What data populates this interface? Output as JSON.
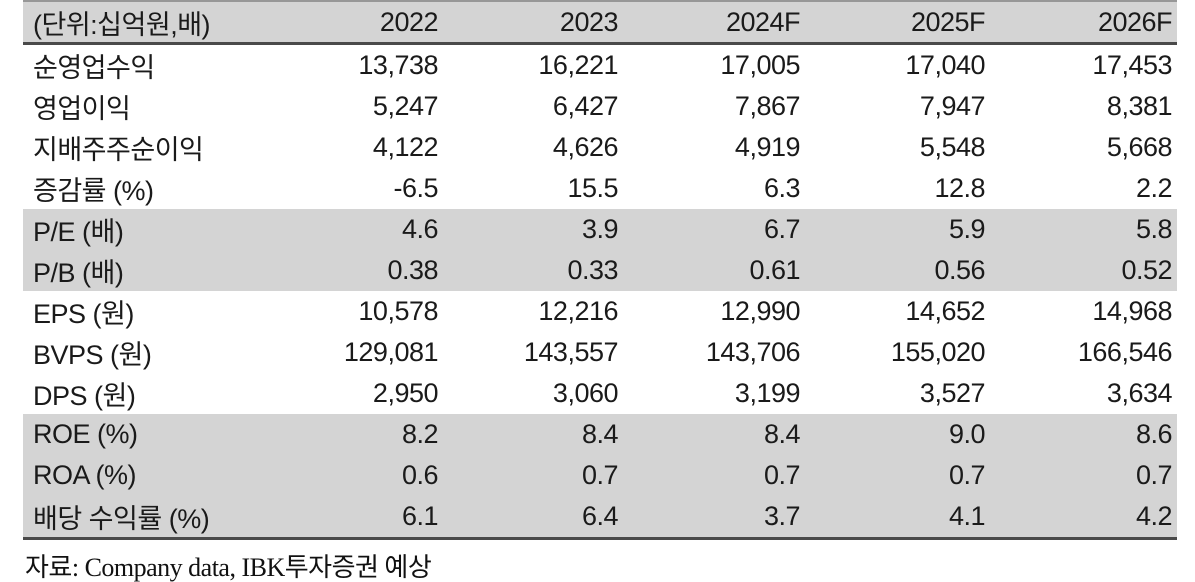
{
  "table": {
    "unit_label": "(단위:십억원,배)",
    "columns": [
      "2022",
      "2023",
      "2024F",
      "2025F",
      "2026F"
    ],
    "rows": [
      {
        "label": "순영업수익",
        "shaded": false,
        "values": [
          "13,738",
          "16,221",
          "17,005",
          "17,040",
          "17,453"
        ]
      },
      {
        "label": "영업이익",
        "shaded": false,
        "values": [
          "5,247",
          "6,427",
          "7,867",
          "7,947",
          "8,381"
        ]
      },
      {
        "label": "지배주주순이익",
        "shaded": false,
        "values": [
          "4,122",
          "4,626",
          "4,919",
          "5,548",
          "5,668"
        ]
      },
      {
        "label": "증감률 (%)",
        "shaded": false,
        "values": [
          "-6.5",
          "15.5",
          "6.3",
          "12.8",
          "2.2"
        ]
      },
      {
        "label": "P/E (배)",
        "shaded": true,
        "values": [
          "4.6",
          "3.9",
          "6.7",
          "5.9",
          "5.8"
        ]
      },
      {
        "label": "P/B (배)",
        "shaded": true,
        "values": [
          "0.38",
          "0.33",
          "0.61",
          "0.56",
          "0.52"
        ]
      },
      {
        "label": "EPS (원)",
        "shaded": false,
        "values": [
          "10,578",
          "12,216",
          "12,990",
          "14,652",
          "14,968"
        ]
      },
      {
        "label": "BVPS (원)",
        "shaded": false,
        "values": [
          "129,081",
          "143,557",
          "143,706",
          "155,020",
          "166,546"
        ]
      },
      {
        "label": "DPS (원)",
        "shaded": false,
        "values": [
          "2,950",
          "3,060",
          "3,199",
          "3,527",
          "3,634"
        ]
      },
      {
        "label": "ROE (%)",
        "shaded": true,
        "values": [
          "8.2",
          "8.4",
          "8.4",
          "9.0",
          "8.6"
        ]
      },
      {
        "label": "ROA (%)",
        "shaded": true,
        "values": [
          "0.6",
          "0.7",
          "0.7",
          "0.7",
          "0.7"
        ]
      },
      {
        "label": "배당 수익률 (%)",
        "shaded": true,
        "values": [
          "6.1",
          "6.4",
          "3.7",
          "4.1",
          "4.2"
        ]
      }
    ]
  },
  "footer": {
    "source_text": "자료: Company data, IBK투자증권 예상"
  },
  "colors": {
    "band_gray": "#d4d4d4",
    "text": "#1a1a1a",
    "border_dark": "#4a4a4a",
    "border_top": "#979797"
  }
}
